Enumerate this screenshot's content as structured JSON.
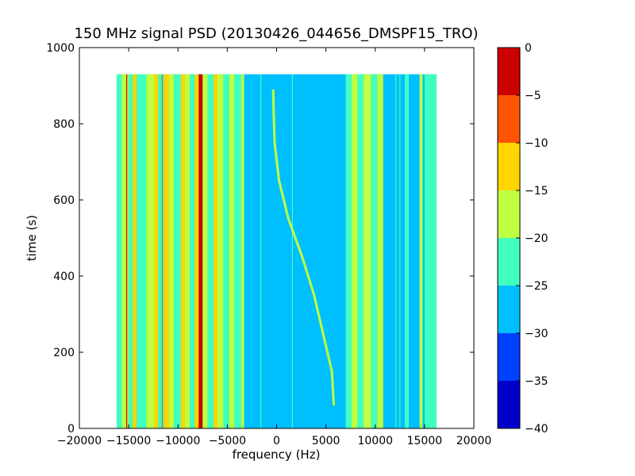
{
  "chart_data": {
    "type": "heatmap",
    "title": "150 MHz signal PSD (20130426_044656_DMSPF15_TRO)",
    "xlabel": "frequency (Hz)",
    "ylabel": "time (s)",
    "xlim": [
      -20000,
      20000
    ],
    "ylim": [
      0,
      1000
    ],
    "x_ticks": [
      -20000,
      -15000,
      -10000,
      -5000,
      0,
      5000,
      10000,
      15000,
      20000
    ],
    "x_tick_labels": [
      "−20000",
      "−15000",
      "−10000",
      "−5000",
      "0",
      "5000",
      "10000",
      "15000",
      "20000"
    ],
    "y_ticks": [
      0,
      200,
      400,
      600,
      800,
      1000
    ],
    "y_tick_labels": [
      "0",
      "200",
      "400",
      "600",
      "800",
      "1000"
    ],
    "data_extent": {
      "x": [
        -16200,
        16200
      ],
      "y": [
        0,
        930
      ]
    },
    "colorbar": {
      "levels": [
        -40,
        -35,
        -30,
        -25,
        -20,
        -15,
        -10,
        -5,
        0
      ],
      "tick_labels": [
        "−40",
        "−35",
        "−30",
        "−25",
        "−20",
        "−15",
        "−10",
        "−5",
        "0"
      ],
      "colors": [
        "#0000cd",
        "#0040ff",
        "#00bfff",
        "#40ffbf",
        "#bfff40",
        "#ffd500",
        "#ff5500",
        "#cd0000"
      ]
    },
    "background_level_db": -27.5,
    "sweep_trace": {
      "level_db": -17.5,
      "points": [
        [
          5800,
          60
        ],
        [
          5600,
          150
        ],
        [
          4700,
          250
        ],
        [
          3800,
          350
        ],
        [
          2600,
          450
        ],
        [
          1200,
          550
        ],
        [
          250,
          650
        ],
        [
          -200,
          750
        ],
        [
          -300,
          830
        ],
        [
          -350,
          890
        ]
      ]
    },
    "stripe_bands": [
      {
        "x": [
          -16200,
          -15700
        ],
        "level_db": -22.5
      },
      {
        "x": [
          -15700,
          -15000
        ],
        "level_db": -17.5
      },
      {
        "x": [
          -15000,
          -14600
        ],
        "level_db": -22.5
      },
      {
        "x": [
          -14600,
          -14200
        ],
        "level_db": -12.5
      },
      {
        "x": [
          -14200,
          -13200
        ],
        "level_db": -22.5
      },
      {
        "x": [
          -13200,
          -12400
        ],
        "level_db": -17.5
      },
      {
        "x": [
          -12400,
          -12000
        ],
        "level_db": -12.5
      },
      {
        "x": [
          -12000,
          -11400
        ],
        "level_db": -22.5
      },
      {
        "x": [
          -11400,
          -10900
        ],
        "level_db": -12.5
      },
      {
        "x": [
          -10900,
          -10400
        ],
        "level_db": -17.5
      },
      {
        "x": [
          -10400,
          -9700
        ],
        "level_db": -22.5
      },
      {
        "x": [
          -9700,
          -9300
        ],
        "level_db": -12.5
      },
      {
        "x": [
          -9300,
          -8800
        ],
        "level_db": -17.5
      },
      {
        "x": [
          -8800,
          -8300
        ],
        "level_db": -22.5
      },
      {
        "x": [
          -8300,
          -7900
        ],
        "level_db": -12.5
      },
      {
        "x": [
          -7900,
          -7500
        ],
        "level_db": -2.5
      },
      {
        "x": [
          -7500,
          -7000
        ],
        "level_db": -17.5
      },
      {
        "x": [
          -7000,
          -6400
        ],
        "level_db": -22.5
      },
      {
        "x": [
          -6400,
          -6000
        ],
        "level_db": -12.5
      },
      {
        "x": [
          -6000,
          -5400
        ],
        "level_db": -17.5
      },
      {
        "x": [
          -5400,
          -4800
        ],
        "level_db": -22.5
      },
      {
        "x": [
          -4800,
          -4300
        ],
        "level_db": -17.5
      },
      {
        "x": [
          -4300,
          -3600
        ],
        "level_db": -22.5
      },
      {
        "x": [
          -3600,
          -3300
        ],
        "level_db": -17.5
      },
      {
        "x": [
          7000,
          7600
        ],
        "level_db": -22.5
      },
      {
        "x": [
          7600,
          8200
        ],
        "level_db": -17.5
      },
      {
        "x": [
          8200,
          8800
        ],
        "level_db": -22.5
      },
      {
        "x": [
          8800,
          9600
        ],
        "level_db": -17.5
      },
      {
        "x": [
          9600,
          10200
        ],
        "level_db": -22.5
      },
      {
        "x": [
          10200,
          10800
        ],
        "level_db": -17.5
      },
      {
        "x": [
          13000,
          13400
        ],
        "level_db": -22.5
      },
      {
        "x": [
          14500,
          14800
        ],
        "level_db": -17.5
      },
      {
        "x": [
          15000,
          16200
        ],
        "level_db": -22.5
      }
    ],
    "thin_lines": [
      {
        "x": -15200,
        "level_db": -2.5
      },
      {
        "x": -7700,
        "level_db": -2.5
      },
      {
        "x": -11600,
        "level_db": -7.5
      },
      {
        "x": -1600,
        "level_db": -22.5
      },
      {
        "x": 1600,
        "level_db": -22.5
      },
      {
        "x": 12100,
        "level_db": -22.5
      },
      {
        "x": 12500,
        "level_db": -22.5
      }
    ],
    "grid": false,
    "legend": "colorbar right"
  }
}
